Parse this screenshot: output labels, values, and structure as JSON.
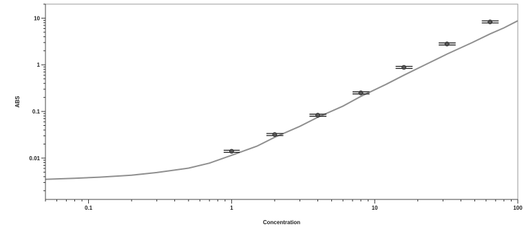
{
  "chart_data": {
    "type": "scatter",
    "title": "",
    "xlabel": "Concentration",
    "ylabel": "ABS",
    "xscale": "log",
    "yscale": "log",
    "xlim": [
      0.05,
      100
    ],
    "ylim": [
      0.0013,
      20
    ],
    "x_ticks": [
      {
        "value": 0.1,
        "label": "0.1"
      },
      {
        "value": 1,
        "label": "1"
      },
      {
        "value": 10,
        "label": "10"
      },
      {
        "value": 100,
        "label": "100"
      }
    ],
    "y_ticks": [
      {
        "value": 0.01,
        "label": "0.01"
      },
      {
        "value": 0.1,
        "label": "0.1"
      },
      {
        "value": 1,
        "label": "1"
      },
      {
        "value": 10,
        "label": "10"
      }
    ],
    "grid": false,
    "legend": "none",
    "points": [
      {
        "x": 1.0,
        "y": 0.014,
        "xerr_low": 0.88,
        "xerr_high": 1.14
      },
      {
        "x": 2.0,
        "y": 0.032,
        "xerr_low": 1.75,
        "xerr_high": 2.3
      },
      {
        "x": 4.0,
        "y": 0.083,
        "xerr_low": 3.5,
        "xerr_high": 4.6
      },
      {
        "x": 8.0,
        "y": 0.25,
        "xerr_low": 7.0,
        "xerr_high": 9.2
      },
      {
        "x": 16.0,
        "y": 0.88,
        "xerr_low": 14.0,
        "xerr_high": 18.4
      },
      {
        "x": 32.0,
        "y": 2.8,
        "xerr_low": 28.0,
        "xerr_high": 36.8
      },
      {
        "x": 64.0,
        "y": 8.3,
        "xerr_low": 56.0,
        "xerr_high": 73.5
      }
    ],
    "fit_curve": {
      "x": [
        0.05,
        0.08,
        0.12,
        0.2,
        0.3,
        0.5,
        0.7,
        1,
        1.5,
        2,
        3,
        4,
        6,
        8,
        12,
        16,
        24,
        32,
        48,
        64,
        80,
        100
      ],
      "y": [
        0.0035,
        0.0037,
        0.0039,
        0.0043,
        0.0049,
        0.0061,
        0.0078,
        0.0115,
        0.018,
        0.028,
        0.048,
        0.075,
        0.13,
        0.21,
        0.38,
        0.6,
        1.1,
        1.7,
        3.0,
        4.6,
        6.2,
        8.8
      ]
    },
    "colors": {
      "curve": "#8f8f8f",
      "points": "#555555",
      "error_bars": "#1a1a1a",
      "axis": "#444444"
    }
  }
}
